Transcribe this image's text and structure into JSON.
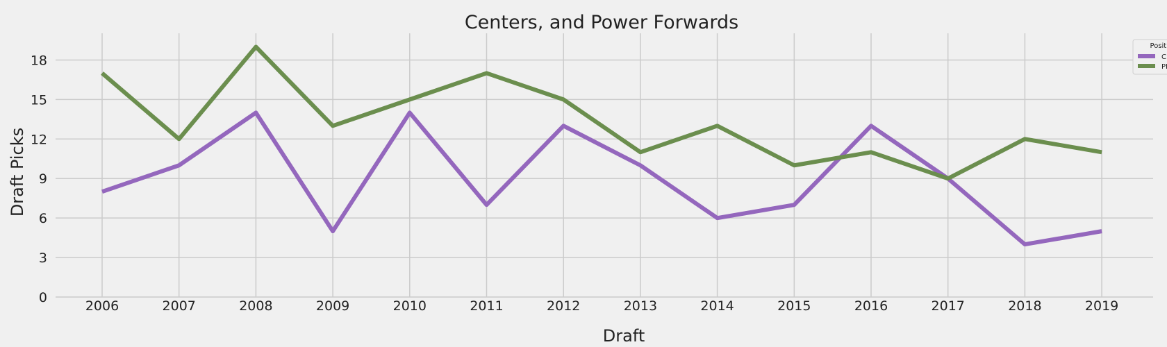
{
  "chart_data": {
    "type": "line",
    "title": "Centers, and Power Forwards",
    "xlabel": "Draft",
    "ylabel": "Draft Picks",
    "categories": [
      "2006",
      "2007",
      "2008",
      "2009",
      "2010",
      "2011",
      "2012",
      "2013",
      "2014",
      "2015",
      "2016",
      "2017",
      "2018",
      "2019"
    ],
    "yticks": [
      "0",
      "3",
      "6",
      "9",
      "12",
      "15",
      "18"
    ],
    "ylim": [
      0,
      19.5
    ],
    "grid": true,
    "legend": {
      "title": "Position",
      "placement": "top-right"
    },
    "series": [
      {
        "name": "C",
        "color": "#9467bd",
        "values": [
          8,
          10,
          14,
          5,
          14,
          7,
          13,
          10,
          6,
          7,
          13,
          9,
          4,
          5
        ]
      },
      {
        "name": "PF",
        "color": "#6b8e4e",
        "values": [
          17,
          12,
          19,
          13,
          15,
          17,
          15,
          11,
          13,
          10,
          11,
          9,
          12,
          11
        ]
      }
    ]
  }
}
